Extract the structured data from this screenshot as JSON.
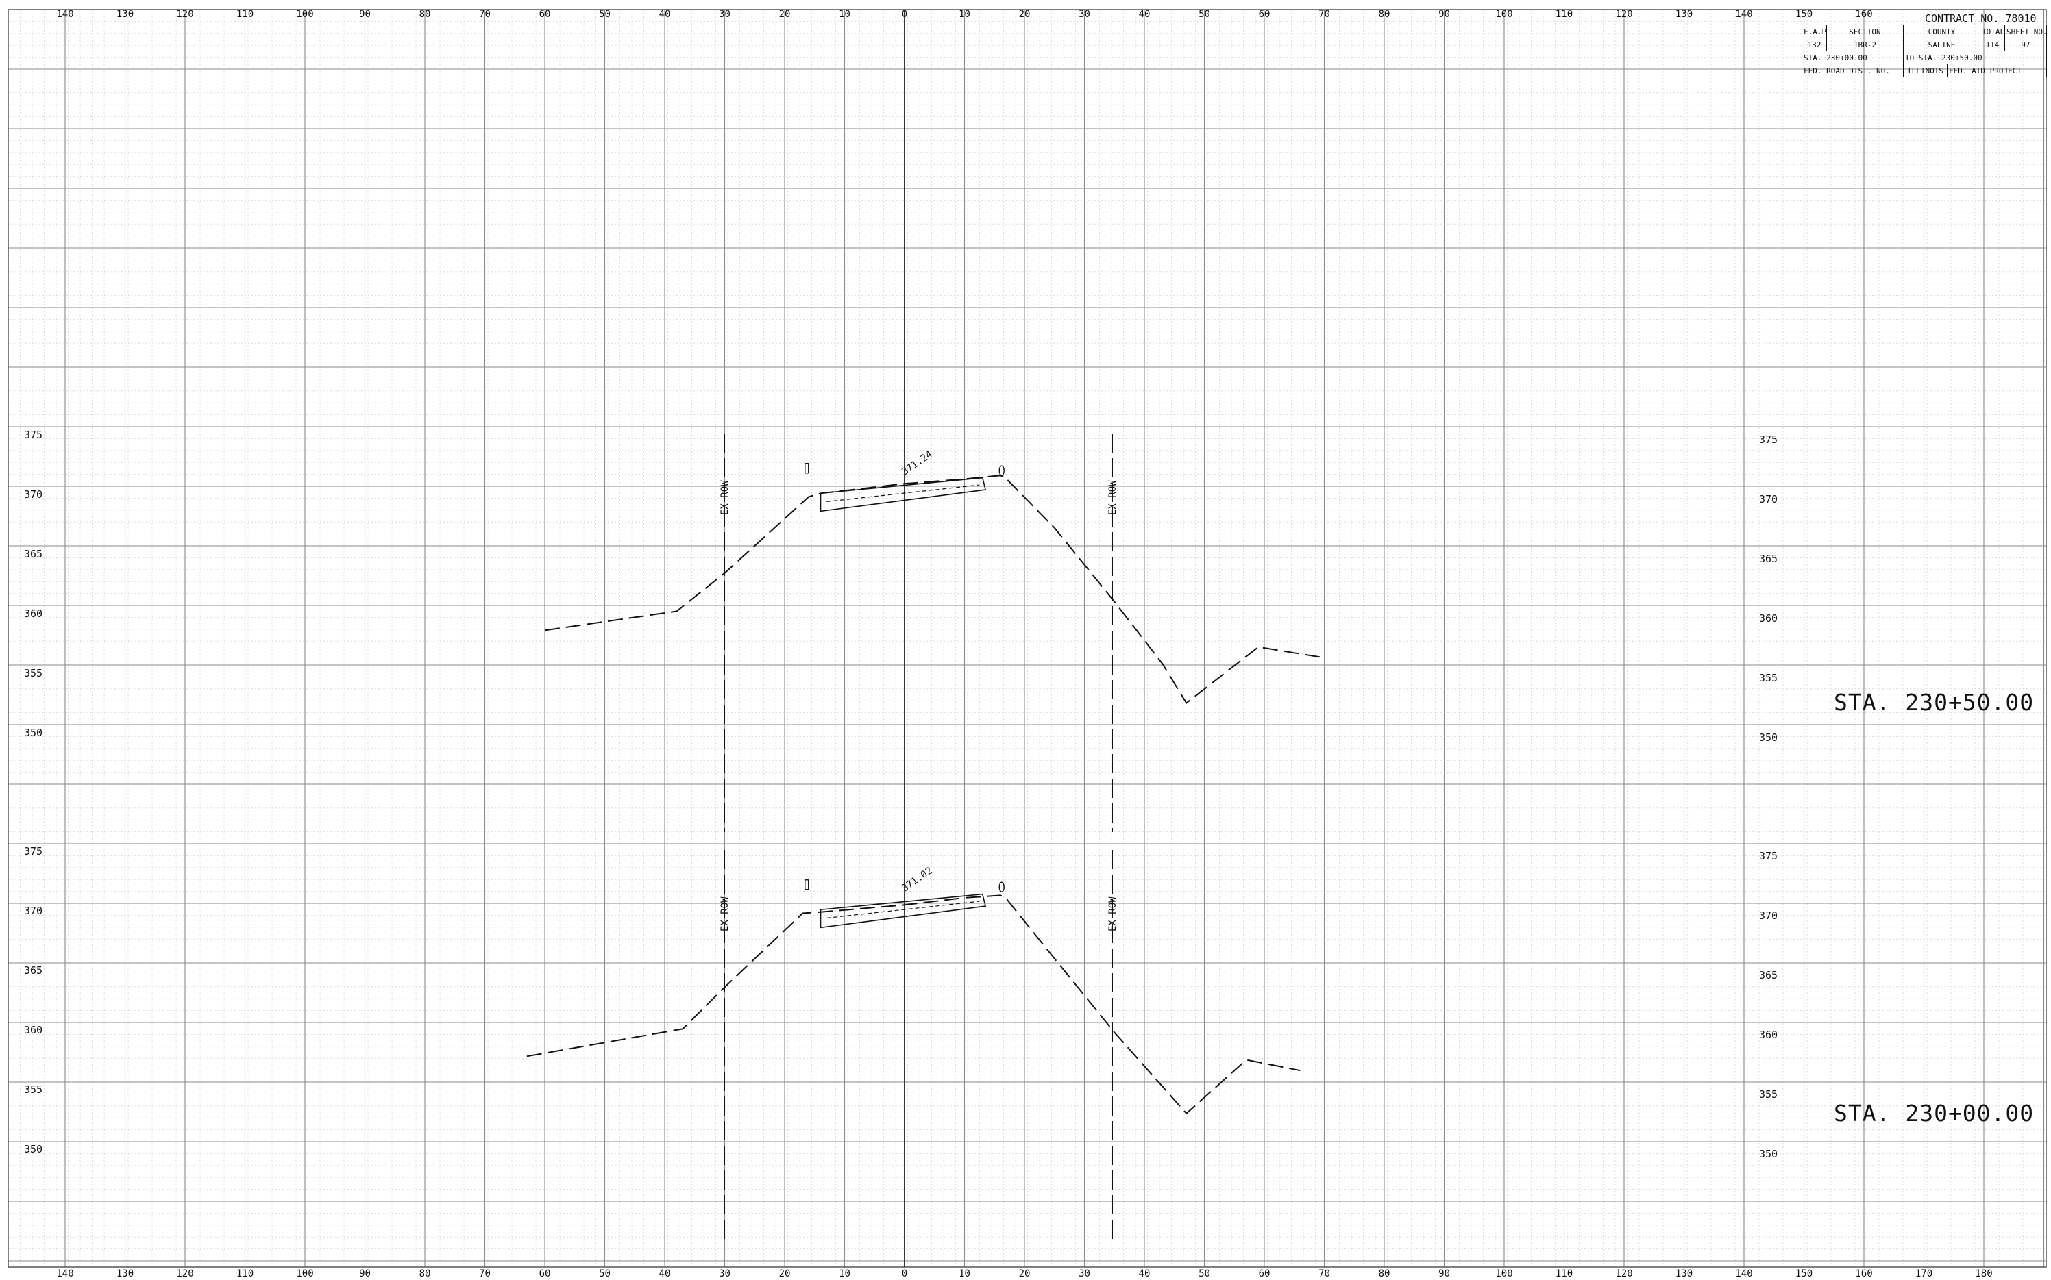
{
  "title_block": {
    "contract": "CONTRACT NO. 78010",
    "header_fap": "F.A.P RTE",
    "header_section": "SECTION",
    "header_county": "COUNTY",
    "header_total": "TOTAL SHEETS",
    "header_sheet": "SHEET NO.",
    "route": "132",
    "section": "1BR-2",
    "county": "SALINE",
    "total_sheets": "114",
    "sheet_no": "97",
    "sta_from": "STA. 230+00.00",
    "sta_to": "TO STA. 230+50.00",
    "fed_dist": "FED. ROAD DIST. NO.",
    "state": "ILLINOIS",
    "project": "FED. AID PROJECT"
  },
  "offset_ticks_top": [
    "140",
    "130",
    "120",
    "110",
    "100",
    "90",
    "80",
    "70",
    "60",
    "50",
    "40",
    "30",
    "20",
    "10",
    "0",
    "10",
    "20",
    "30",
    "40",
    "50",
    "60",
    "70",
    "80",
    "90",
    "100",
    "110",
    "120",
    "130",
    "140",
    "150",
    "160"
  ],
  "offset_ticks_bottom": [
    "140",
    "130",
    "120",
    "110",
    "100",
    "90",
    "80",
    "70",
    "60",
    "50",
    "40",
    "30",
    "20",
    "10",
    "0",
    "10",
    "20",
    "30",
    "40",
    "50",
    "60",
    "70",
    "80",
    "90",
    "100",
    "110",
    "120",
    "130",
    "140",
    "150",
    "160",
    "170",
    "180"
  ],
  "sections": [
    {
      "station": "STA. 230+50.00",
      "elevations": [
        "375",
        "370",
        "365",
        "360",
        "355",
        "350"
      ],
      "proposed_elev": "371.24",
      "row_label": "EX ROW",
      "profile": [
        [
          -60,
          358.6
        ],
        [
          -38,
          360.2
        ],
        [
          -30,
          363.4
        ],
        [
          -16,
          369.8
        ],
        [
          -14,
          370.1
        ],
        [
          0,
          370.9
        ],
        [
          10,
          371.3
        ],
        [
          16,
          371.6
        ],
        [
          17,
          371.3
        ],
        [
          25,
          367.2
        ],
        [
          35,
          361.0
        ],
        [
          43,
          355.8
        ],
        [
          47,
          352.5
        ],
        [
          59,
          357.2
        ],
        [
          70,
          356.3
        ]
      ]
    },
    {
      "station": "STA. 230+00.00",
      "elevations": [
        "375",
        "370",
        "365",
        "360",
        "355",
        "350"
      ],
      "proposed_elev": "371.02",
      "row_label": "EX ROW",
      "profile": [
        [
          -63,
          357.8
        ],
        [
          -37,
          360.1
        ],
        [
          -30,
          363.6
        ],
        [
          -17,
          369.8
        ],
        [
          -14,
          369.9
        ],
        [
          0,
          370.5
        ],
        [
          10,
          371.1
        ],
        [
          16,
          371.3
        ],
        [
          17,
          371.0
        ],
        [
          25,
          366.0
        ],
        [
          35,
          359.8
        ],
        [
          47,
          353.0
        ],
        [
          57,
          357.5
        ],
        [
          66,
          356.6
        ]
      ]
    }
  ]
}
